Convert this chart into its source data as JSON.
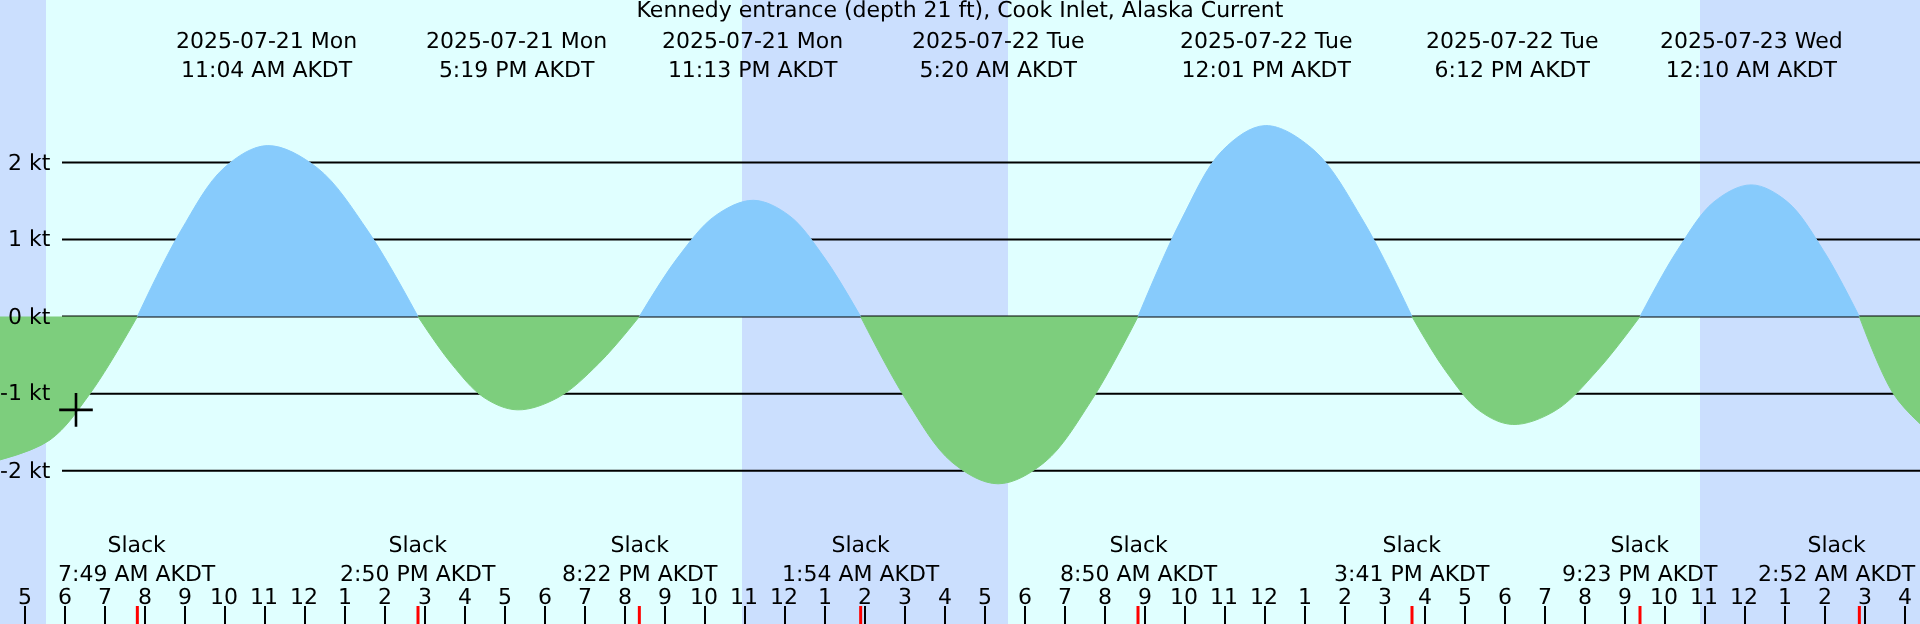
{
  "chart_data": {
    "type": "area",
    "title": "Kennedy entrance (depth 21 ft), Cook Inlet, Alaska Current",
    "series": [
      {
        "color": "#87cbfc",
        "x": [
          "2025-07-21T07:49",
          "2025-07-21T08:54",
          "2025-07-21T09:59",
          "2025-07-21T11:04",
          "2025-07-21T12:19",
          "2025-07-21T13:35",
          "2025-07-21T14:50",
          null,
          "2025-07-21T20:22",
          "2025-07-21T21:19",
          "2025-07-21T22:16",
          "2025-07-21T23:13",
          "2025-07-22T00:07",
          "2025-07-22T01:00",
          "2025-07-22T01:54",
          null,
          "2025-07-22T08:50",
          "2025-07-22T09:54",
          "2025-07-22T10:57",
          "2025-07-22T12:01",
          "2025-07-22T13:14",
          "2025-07-22T14:28",
          "2025-07-22T15:41",
          null,
          "2025-07-22T21:23",
          "2025-07-22T22:19",
          "2025-07-22T23:14",
          "2025-07-23T00:10",
          "2025-07-23T01:04",
          "2025-07-23T01:58",
          "2025-07-23T02:52"
        ],
        "values": [
          0,
          1.11,
          1.93,
          2.22,
          1.93,
          1.11,
          0,
          null,
          0,
          0.76,
          1.31,
          1.51,
          1.31,
          0.76,
          0,
          null,
          0,
          1.24,
          2.16,
          2.48,
          2.16,
          1.24,
          0,
          null,
          0,
          0.86,
          1.49,
          1.71,
          1.49,
          0.86,
          0
        ]
      },
      {
        "color": "#7dce7d",
        "x": [
          "2025-07-21T04:23",
          "2025-07-21T05:38",
          "2025-07-21T06:38",
          "2025-07-21T07:49",
          null,
          "2025-07-21T14:50",
          "2025-07-21T15:40",
          "2025-07-21T16:29",
          "2025-07-21T17:19",
          "2025-07-21T18:20",
          "2025-07-21T19:21",
          "2025-07-21T20:22",
          null,
          "2025-07-22T01:54",
          "2025-07-22T03:03",
          "2025-07-22T04:11",
          "2025-07-22T05:20",
          "2025-07-22T06:30",
          "2025-07-22T07:40",
          "2025-07-22T08:50",
          null,
          "2025-07-22T15:41",
          "2025-07-22T16:31",
          "2025-07-22T17:22",
          "2025-07-22T18:12",
          "2025-07-22T19:16",
          "2025-07-22T20:19",
          "2025-07-22T21:23",
          null,
          "2025-07-23T02:52",
          "2025-07-23T03:43",
          "2025-07-23T04:23"
        ],
        "values": [
          -1.86,
          -1.6,
          -1.0,
          0,
          null,
          0,
          -0.61,
          -1.05,
          -1.21,
          -1.05,
          -0.61,
          0,
          null,
          0,
          -1.09,
          -1.89,
          -2.17,
          -1.89,
          -1.09,
          0,
          null,
          0,
          -0.7,
          -1.22,
          -1.4,
          -1.22,
          -0.7,
          0,
          null,
          0,
          -1.0,
          -1.39
        ]
      },
      {
        "type": "scatter",
        "color": "#000000",
        "marker": "cross",
        "x": [
          "2025-07-21T06:17"
        ],
        "values": [
          -1.21
        ]
      }
    ],
    "xlim": [
      "2025-07-21T04:23",
      "2025-07-23T04:23"
    ],
    "xticks": [
      {
        "value": "2025-07-21T05:00",
        "label": "5"
      },
      {
        "value": "2025-07-21T06:00",
        "label": "6"
      },
      {
        "value": "2025-07-21T07:00",
        "label": "7"
      },
      {
        "value": "2025-07-21T08:00",
        "label": "8"
      },
      {
        "value": "2025-07-21T09:00",
        "label": "9"
      },
      {
        "value": "2025-07-21T10:00",
        "label": "10"
      },
      {
        "value": "2025-07-21T11:00",
        "label": "11"
      },
      {
        "value": "2025-07-21T12:00",
        "label": "12"
      },
      {
        "value": "2025-07-21T13:00",
        "label": "1"
      },
      {
        "value": "2025-07-21T14:00",
        "label": "2"
      },
      {
        "value": "2025-07-21T15:00",
        "label": "3"
      },
      {
        "value": "2025-07-21T16:00",
        "label": "4"
      },
      {
        "value": "2025-07-21T17:00",
        "label": "5"
      },
      {
        "value": "2025-07-21T18:00",
        "label": "6"
      },
      {
        "value": "2025-07-21T19:00",
        "label": "7"
      },
      {
        "value": "2025-07-21T20:00",
        "label": "8"
      },
      {
        "value": "2025-07-21T21:00",
        "label": "9"
      },
      {
        "value": "2025-07-21T22:00",
        "label": "10"
      },
      {
        "value": "2025-07-21T23:00",
        "label": "11"
      },
      {
        "value": "2025-07-22T00:00",
        "label": "12"
      },
      {
        "value": "2025-07-22T01:00",
        "label": "1"
      },
      {
        "value": "2025-07-22T02:00",
        "label": "2"
      },
      {
        "value": "2025-07-22T03:00",
        "label": "3"
      },
      {
        "value": "2025-07-22T04:00",
        "label": "4"
      },
      {
        "value": "2025-07-22T05:00",
        "label": "5"
      },
      {
        "value": "2025-07-22T06:00",
        "label": "6"
      },
      {
        "value": "2025-07-22T07:00",
        "label": "7"
      },
      {
        "value": "2025-07-22T08:00",
        "label": "8"
      },
      {
        "value": "2025-07-22T09:00",
        "label": "9"
      },
      {
        "value": "2025-07-22T10:00",
        "label": "10"
      },
      {
        "value": "2025-07-22T11:00",
        "label": "11"
      },
      {
        "value": "2025-07-22T12:00",
        "label": "12"
      },
      {
        "value": "2025-07-22T13:00",
        "label": "1"
      },
      {
        "value": "2025-07-22T14:00",
        "label": "2"
      },
      {
        "value": "2025-07-22T15:00",
        "label": "3"
      },
      {
        "value": "2025-07-22T16:00",
        "label": "4"
      },
      {
        "value": "2025-07-22T17:00",
        "label": "5"
      },
      {
        "value": "2025-07-22T18:00",
        "label": "6"
      },
      {
        "value": "2025-07-22T19:00",
        "label": "7"
      },
      {
        "value": "2025-07-22T20:00",
        "label": "8"
      },
      {
        "value": "2025-07-22T21:00",
        "label": "9"
      },
      {
        "value": "2025-07-22T22:00",
        "label": "10"
      },
      {
        "value": "2025-07-22T23:00",
        "label": "11"
      },
      {
        "value": "2025-07-23T00:00",
        "label": "12"
      },
      {
        "value": "2025-07-23T01:00",
        "label": "1"
      },
      {
        "value": "2025-07-23T02:00",
        "label": "2"
      },
      {
        "value": "2025-07-23T03:00",
        "label": "3"
      },
      {
        "value": "2025-07-23T04:00",
        "label": "4"
      }
    ],
    "ylim": [
      -3.99,
      4.11
    ],
    "yticks": [
      {
        "value": 2,
        "label": "2 kt"
      },
      {
        "value": 1,
        "label": "1 kt"
      },
      {
        "value": 0,
        "label": "0 kt"
      },
      {
        "value": -1,
        "label": "-1 kt"
      },
      {
        "value": -2,
        "label": "-2 kt"
      }
    ],
    "grid": "y",
    "bands": [
      {
        "axis": "x",
        "from": "2025-07-21T04:23",
        "to": "2025-07-21T05:32",
        "color": "#cbdffe"
      },
      {
        "axis": "x",
        "from": "2025-07-21T22:56",
        "to": "2025-07-22T05:35",
        "color": "#cbdffe"
      },
      {
        "axis": "x",
        "from": "2025-07-22T22:53",
        "to": "2025-07-23T04:23",
        "color": "#cbdffe"
      }
    ],
    "annotations": [
      "2025-07-21 Mon\n11:04 AM AKDT",
      "2025-07-21 Mon\n5:19 PM AKDT",
      "2025-07-21 Mon\n11:13 PM AKDT",
      "2025-07-22 Tue\n5:20 AM AKDT",
      "2025-07-22 Tue\n12:01 PM AKDT",
      "2025-07-22 Tue\n6:12 PM AKDT",
      "2025-07-23 Wed\n12:10 AM AKDT",
      "Slack\n7:49 AM AKDT",
      "Slack\n2:50 PM AKDT",
      "Slack\n8:22 PM AKDT",
      "Slack\n1:54 AM AKDT",
      "Slack\n8:50 AM AKDT",
      "Slack\n3:41 PM AKDT",
      "Slack\n9:23 PM AKDT",
      "Slack\n2:52 AM AKDT"
    ]
  }
}
